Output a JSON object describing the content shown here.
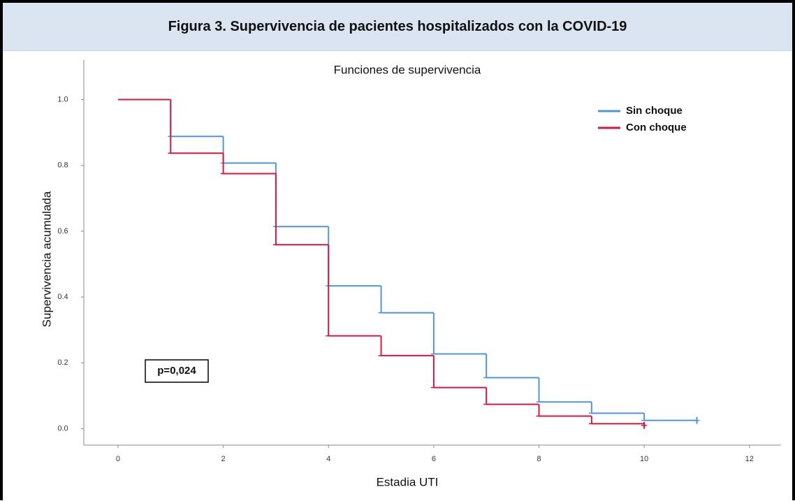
{
  "header": {
    "title": "Figura 3. Supervivencia de pacientes hospitalizados con la COVID-19"
  },
  "chart_data": {
    "type": "step",
    "title": "Funciones de supervivencia",
    "x_label": "Estadia UTI",
    "y_label": "Supervivencia acumulada",
    "annotation": "p=0,024",
    "x": [
      0,
      1,
      2,
      3,
      4,
      5,
      6,
      7,
      8,
      9,
      10,
      11
    ],
    "series": [
      {
        "name": "Sin choque",
        "color": "#4f94dc",
        "values": [
          1.0,
          0.888,
          0.807,
          0.614,
          0.434,
          0.352,
          0.227,
          0.155,
          0.081,
          0.047,
          0.025,
          0.025
        ]
      },
      {
        "name": "Con choque",
        "color": "#d8163f",
        "values": [
          1.0,
          0.837,
          0.775,
          0.559,
          0.282,
          0.222,
          0.125,
          0.074,
          0.038,
          0.015,
          0.01,
          null
        ]
      }
    ],
    "xlim": [
      -0.65,
      12.6
    ],
    "ylim": [
      -0.05,
      1.12
    ],
    "xticks": [
      0,
      2,
      4,
      6,
      8,
      10,
      12
    ],
    "yticks": [
      {
        "value": 0,
        "label": "0.0"
      },
      0.2,
      0.4,
      0.6,
      0.8,
      {
        "value": 1,
        "label": "1.0"
      }
    ],
    "legend": "upper right"
  }
}
